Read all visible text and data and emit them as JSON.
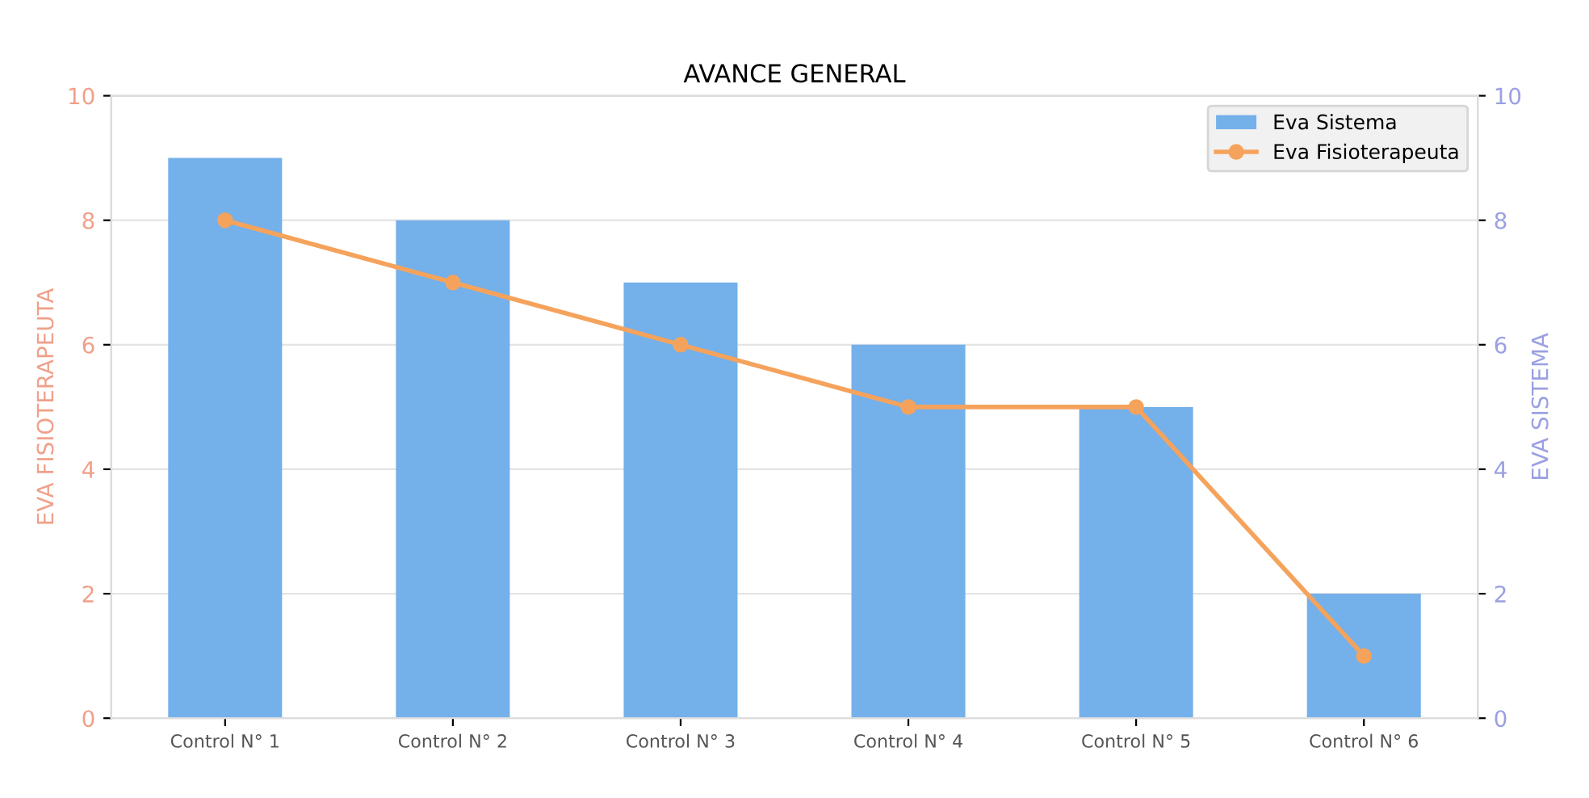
{
  "chart_data": {
    "type": "bar",
    "title": "AVANCE GENERAL",
    "categories": [
      "Control N° 1",
      "Control N° 2",
      "Control N° 3",
      "Control N° 4",
      "Control N° 5",
      "Control N° 6"
    ],
    "series": [
      {
        "name": "Eva Sistema",
        "color": "#74b0ea",
        "values": [
          9,
          8,
          7,
          6,
          5,
          2
        ]
      },
      {
        "name": "Eva Fisioterapeuta",
        "type": "line",
        "color": "#f5a35c",
        "values": [
          8,
          7,
          6,
          5,
          5,
          1
        ]
      }
    ],
    "ylabel": "EVA FISIOTERAPEUTA",
    "y2label": "EVA SISTEMA",
    "ylim": [
      0,
      10
    ],
    "yticks": [
      0,
      2,
      4,
      6,
      8,
      10
    ],
    "y2lim": [
      0,
      10
    ],
    "y2ticks": [
      0,
      2,
      4,
      6,
      8,
      10
    ],
    "grid": true,
    "legend": "top right",
    "marker": "circle",
    "line_style": "solid"
  }
}
